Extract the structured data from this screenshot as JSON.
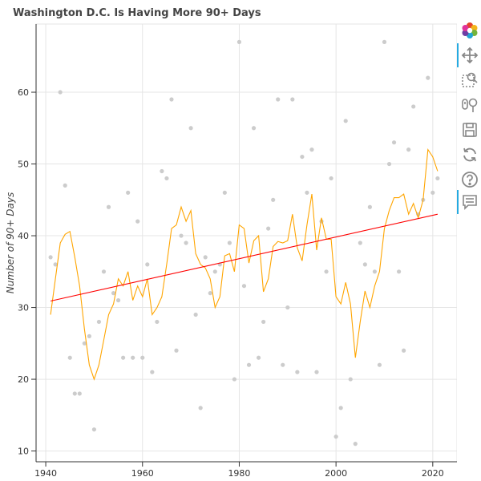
{
  "chart_data": {
    "type": "scatter",
    "title": "Washington D.C. Is Having More 90+ Days",
    "xlabel": "",
    "ylabel": "Number of 90+ Days",
    "xlim": [
      1938,
      2025
    ],
    "ylim": [
      8.5,
      69.5
    ],
    "x_ticks": [
      1940,
      1960,
      1980,
      2000,
      2020
    ],
    "y_ticks": [
      10,
      20,
      30,
      40,
      50,
      60
    ],
    "grid": true,
    "series": [
      {
        "kind": "scatter",
        "color": "#cccccc",
        "points": [
          [
            1941,
            37
          ],
          [
            1942,
            36
          ],
          [
            1943,
            60
          ],
          [
            1944,
            47
          ],
          [
            1945,
            23
          ],
          [
            1946,
            18
          ],
          [
            1947,
            18
          ],
          [
            1948,
            25
          ],
          [
            1949,
            26
          ],
          [
            1950,
            13
          ],
          [
            1951,
            28
          ],
          [
            1952,
            35
          ],
          [
            1953,
            44
          ],
          [
            1954,
            32
          ],
          [
            1955,
            31
          ],
          [
            1956,
            23
          ],
          [
            1957,
            46
          ],
          [
            1958,
            23
          ],
          [
            1959,
            42
          ],
          [
            1960,
            23
          ],
          [
            1961,
            36
          ],
          [
            1962,
            21
          ],
          [
            1963,
            28
          ],
          [
            1964,
            49
          ],
          [
            1965,
            48
          ],
          [
            1966,
            59
          ],
          [
            1967,
            24
          ],
          [
            1968,
            40
          ],
          [
            1969,
            39
          ],
          [
            1970,
            55
          ],
          [
            1971,
            29
          ],
          [
            1972,
            16
          ],
          [
            1973,
            37
          ],
          [
            1974,
            32
          ],
          [
            1975,
            35
          ],
          [
            1976,
            36
          ],
          [
            1977,
            46
          ],
          [
            1978,
            39
          ],
          [
            1979,
            20
          ],
          [
            1980,
            67
          ],
          [
            1981,
            33
          ],
          [
            1982,
            22
          ],
          [
            1983,
            55
          ],
          [
            1984,
            23
          ],
          [
            1985,
            28
          ],
          [
            1986,
            41
          ],
          [
            1987,
            45
          ],
          [
            1988,
            59
          ],
          [
            1989,
            22
          ],
          [
            1990,
            30
          ],
          [
            1991,
            59
          ],
          [
            1992,
            21
          ],
          [
            1993,
            51
          ],
          [
            1994,
            46
          ],
          [
            1995,
            52
          ],
          [
            1996,
            21
          ],
          [
            1997,
            42
          ],
          [
            1998,
            35
          ],
          [
            1999,
            48
          ],
          [
            2000,
            12
          ],
          [
            2001,
            16
          ],
          [
            2002,
            56
          ],
          [
            2003,
            20
          ],
          [
            2004,
            11
          ],
          [
            2005,
            39
          ],
          [
            2006,
            36
          ],
          [
            2007,
            44
          ],
          [
            2008,
            35
          ],
          [
            2009,
            22
          ],
          [
            2010,
            67
          ],
          [
            2011,
            50
          ],
          [
            2012,
            53
          ],
          [
            2013,
            35
          ],
          [
            2014,
            24
          ],
          [
            2015,
            52
          ],
          [
            2016,
            58
          ],
          [
            2017,
            43
          ],
          [
            2018,
            45
          ],
          [
            2019,
            62
          ],
          [
            2020,
            46
          ],
          [
            2021,
            48
          ]
        ]
      },
      {
        "kind": "line",
        "color": "#ffa500",
        "points": [
          [
            1941,
            29
          ],
          [
            1942,
            34
          ],
          [
            1943,
            39
          ],
          [
            1944,
            40.2
          ],
          [
            1945,
            40.6
          ],
          [
            1946,
            37
          ],
          [
            1947,
            33
          ],
          [
            1948,
            27
          ],
          [
            1949,
            22
          ],
          [
            1950,
            20
          ],
          [
            1951,
            22
          ],
          [
            1952,
            25.5
          ],
          [
            1953,
            29
          ],
          [
            1954,
            30.5
          ],
          [
            1955,
            34
          ],
          [
            1956,
            33
          ],
          [
            1957,
            35
          ],
          [
            1958,
            31
          ],
          [
            1959,
            33
          ],
          [
            1960,
            31.5
          ],
          [
            1961,
            34
          ],
          [
            1962,
            29
          ],
          [
            1963,
            30
          ],
          [
            1964,
            31.5
          ],
          [
            1965,
            36
          ],
          [
            1966,
            41
          ],
          [
            1967,
            41.5
          ],
          [
            1968,
            44
          ],
          [
            1969,
            42
          ],
          [
            1970,
            43.5
          ],
          [
            1971,
            37.5
          ],
          [
            1972,
            36
          ],
          [
            1973,
            35.5
          ],
          [
            1974,
            34
          ],
          [
            1975,
            30
          ],
          [
            1976,
            31.5
          ],
          [
            1977,
            37.2
          ],
          [
            1978,
            37.5
          ],
          [
            1979,
            35
          ],
          [
            1980,
            41.5
          ],
          [
            1981,
            41
          ],
          [
            1982,
            36.2
          ],
          [
            1983,
            39.3
          ],
          [
            1984,
            40
          ],
          [
            1985,
            32.2
          ],
          [
            1986,
            34
          ],
          [
            1987,
            38.5
          ],
          [
            1988,
            39.2
          ],
          [
            1989,
            39
          ],
          [
            1990,
            39.3
          ],
          [
            1991,
            43
          ],
          [
            1992,
            38.3
          ],
          [
            1993,
            36.5
          ],
          [
            1994,
            41.5
          ],
          [
            1995,
            45.8
          ],
          [
            1996,
            38
          ],
          [
            1997,
            42.5
          ],
          [
            1998,
            39.5
          ],
          [
            1999,
            39.5
          ],
          [
            2000,
            31.5
          ],
          [
            2001,
            30.5
          ],
          [
            2002,
            33.5
          ],
          [
            2003,
            30.5
          ],
          [
            2004,
            23
          ],
          [
            2005,
            28
          ],
          [
            2006,
            32.3
          ],
          [
            2007,
            30
          ],
          [
            2008,
            33
          ],
          [
            2009,
            35
          ],
          [
            2010,
            41
          ],
          [
            2011,
            43.5
          ],
          [
            2012,
            45.3
          ],
          [
            2013,
            45.3
          ],
          [
            2014,
            45.8
          ],
          [
            2015,
            43
          ],
          [
            2016,
            44.5
          ],
          [
            2017,
            42.5
          ],
          [
            2018,
            45
          ],
          [
            2019,
            52
          ],
          [
            2020,
            51
          ],
          [
            2021,
            49
          ]
        ]
      },
      {
        "kind": "line",
        "color": "#ff0000",
        "points": [
          [
            1941,
            30.9
          ],
          [
            2021,
            43
          ]
        ]
      }
    ]
  },
  "toolbar": {
    "tools": [
      {
        "name": "bokeh-logo-icon",
        "active": false
      },
      {
        "name": "pan-tool-icon",
        "active": true
      },
      {
        "name": "box-zoom-tool-icon",
        "active": false
      },
      {
        "name": "wheel-zoom-tool-icon",
        "active": false
      },
      {
        "name": "save-tool-icon",
        "active": false
      },
      {
        "name": "reset-tool-icon",
        "active": false
      },
      {
        "name": "help-tool-icon",
        "active": false
      },
      {
        "name": "hover-tool-icon",
        "active": true
      }
    ],
    "accent": "#26aae1"
  }
}
